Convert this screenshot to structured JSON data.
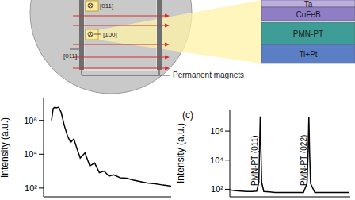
{
  "schematic": {
    "directions": [
      "[011]",
      "[100]",
      "[011]"
    ],
    "magnet_label": "Permanent magnets"
  },
  "layers": [
    "Ta",
    "CoFeB",
    "PMN-PT",
    "Ti+Pt"
  ],
  "chart_data": [
    {
      "type": "line",
      "ylabel": "Intensity (a.u.)",
      "log": "y",
      "tick_labels": "y",
      "color": "#000000",
      "xlim": [
        0,
        8
      ],
      "ylim": [
        30,
        20000000
      ],
      "yticks": [
        {
          "value": 100,
          "label": "10²"
        },
        {
          "value": 10000,
          "label": "10⁴"
        },
        {
          "value": 1000000,
          "label": "10⁶"
        }
      ],
      "x": [
        0.5,
        0.6,
        0.7,
        0.8,
        0.95,
        1.1,
        1.3,
        1.5,
        1.7,
        1.9,
        2.1,
        2.3,
        2.6,
        2.9,
        3.2,
        3.5,
        3.8,
        4.1,
        4.4,
        4.8,
        5.2,
        5.6,
        6.0,
        6.5,
        7.0,
        7.5,
        8.0
      ],
      "values": [
        1000000,
        5000000,
        6000000,
        5500000,
        6000000,
        3000000,
        500000,
        120000,
        50000,
        80000,
        20000,
        6000,
        12000,
        2000,
        3000,
        800,
        1000,
        500,
        600,
        400,
        380,
        300,
        250,
        200,
        180,
        150,
        130
      ]
    },
    {
      "type": "line",
      "title": "(c)",
      "ylabel": "Intensity (a.u.)",
      "log": "y",
      "tick_labels": "y",
      "color": "#000000",
      "annotations": [
        "PMN-PT (011)",
        "PMN-PT (022)"
      ],
      "xlim": [
        10,
        95
      ],
      "ylim": [
        30,
        30000000
      ],
      "yticks": [
        {
          "value": 100,
          "label": "10²"
        },
        {
          "value": 10000,
          "label": "10⁴"
        },
        {
          "value": 1000000,
          "label": "10⁶"
        }
      ],
      "x": [
        10,
        14,
        18,
        22,
        26,
        29,
        30.5,
        31,
        31.5,
        32,
        32.5,
        34,
        38,
        42,
        46,
        50,
        54,
        58,
        62,
        64.5,
        65.3,
        65.8,
        66.3,
        67,
        70,
        74,
        78,
        82,
        86,
        90,
        94
      ],
      "values": [
        90,
        80,
        75,
        70,
        70,
        75,
        300,
        50000,
        10000000,
        50000,
        300,
        70,
        65,
        60,
        60,
        60,
        60,
        60,
        60,
        250,
        40000,
        9000000,
        40000,
        250,
        60,
        60,
        60,
        60,
        60,
        60,
        60
      ]
    }
  ]
}
